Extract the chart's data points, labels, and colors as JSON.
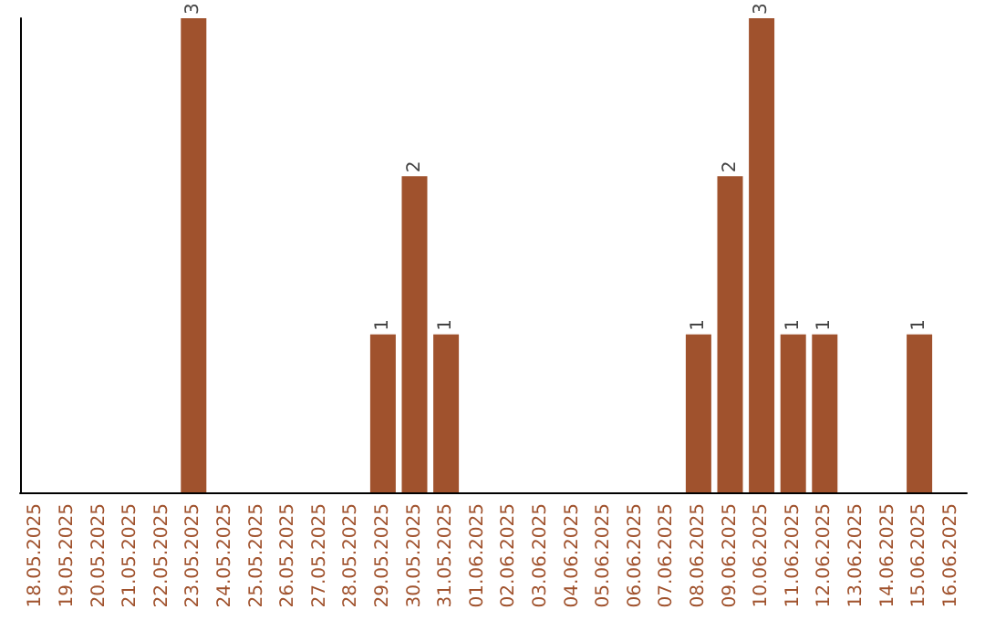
{
  "chart_data": {
    "type": "bar",
    "categories": [
      "18.05.2025",
      "19.05.2025",
      "20.05.2025",
      "21.05.2025",
      "22.05.2025",
      "23.05.2025",
      "24.05.2025",
      "25.05.2025",
      "26.05.2025",
      "27.05.2025",
      "28.05.2025",
      "29.05.2025",
      "30.05.2025",
      "31.05.2025",
      "01.06.2025",
      "02.06.2025",
      "03.06.2025",
      "04.06.2025",
      "05.06.2025",
      "06.06.2025",
      "07.06.2025",
      "08.06.2025",
      "09.06.2025",
      "10.06.2025",
      "11.06.2025",
      "12.06.2025",
      "13.06.2025",
      "14.06.2025",
      "15.06.2025",
      "16.06.2025"
    ],
    "values": [
      0,
      0,
      0,
      0,
      0,
      3,
      0,
      0,
      0,
      0,
      0,
      1,
      2,
      1,
      0,
      0,
      0,
      0,
      0,
      0,
      0,
      1,
      2,
      3,
      1,
      1,
      0,
      0,
      1,
      0
    ],
    "value_labels": [
      null,
      null,
      null,
      null,
      null,
      "3",
      null,
      null,
      null,
      null,
      null,
      "1",
      "2",
      "1",
      null,
      null,
      null,
      null,
      null,
      null,
      null,
      "1",
      "2",
      "3",
      "1",
      "1",
      null,
      null,
      "1",
      null
    ],
    "color": "#a0522d",
    "tick_labels": "x",
    "grid": false
  }
}
